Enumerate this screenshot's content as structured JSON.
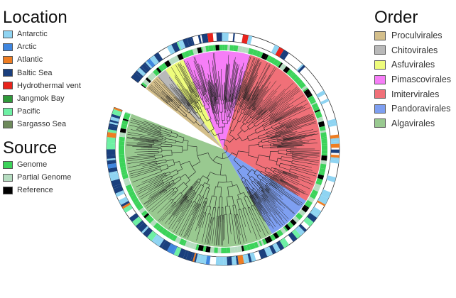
{
  "location_legend": {
    "title": "Location",
    "items": [
      {
        "label": "Antarctic",
        "color": "#8fd4f2"
      },
      {
        "label": "Arctic",
        "color": "#3f86df"
      },
      {
        "label": "Atlantic",
        "color": "#ef7d22"
      },
      {
        "label": "Baltic Sea",
        "color": "#1a3f7d"
      },
      {
        "label": "Hydrothermal vent",
        "color": "#e8231c"
      },
      {
        "label": "Jangmok Bay",
        "color": "#2f9a3a"
      },
      {
        "label": "Pacific",
        "color": "#6ef0a4"
      },
      {
        "label": "Sargasso Sea",
        "color": "#6e8a5c"
      }
    ]
  },
  "source_legend": {
    "title": "Source",
    "items": [
      {
        "label": "Genome",
        "color": "#3cd35a"
      },
      {
        "label": "Partial Genome",
        "color": "#b5dcc0"
      },
      {
        "label": "Reference",
        "color": "#000000"
      }
    ]
  },
  "order_legend": {
    "title": "Order",
    "items": [
      {
        "label": "Proculvirales",
        "color": "#d4bf8b"
      },
      {
        "label": "Chitovirales",
        "color": "#b9b9b9"
      },
      {
        "label": "Asfuvirales",
        "color": "#eefc7c"
      },
      {
        "label": "Pimascovirales",
        "color": "#f67ef7"
      },
      {
        "label": "Imitervirales",
        "color": "#f07078"
      },
      {
        "label": "Pandoravirales",
        "color": "#7e9ff1"
      },
      {
        "label": "Algavirales",
        "color": "#99c990"
      }
    ]
  }
}
